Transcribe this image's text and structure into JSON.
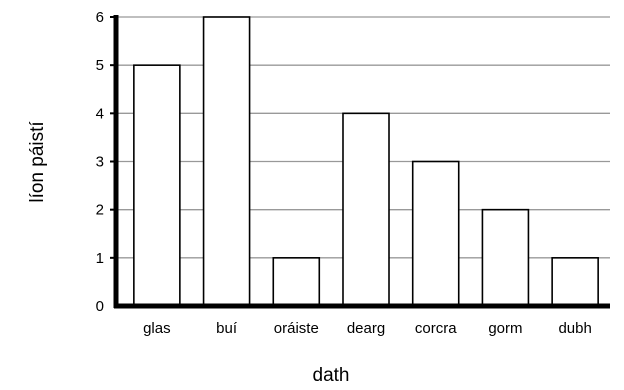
{
  "chart_data": {
    "type": "bar",
    "xlabel": "dath",
    "ylabel": "líon páistí",
    "categories": [
      "glas",
      "buí",
      "oráiste",
      "dearg",
      "corcra",
      "gorm",
      "dubh"
    ],
    "values": [
      5,
      6,
      1,
      4,
      3,
      2,
      1
    ],
    "ylim": [
      0,
      6
    ],
    "yticks": [
      0,
      1,
      2,
      3,
      4,
      5,
      6
    ],
    "grid": true,
    "legend": "none",
    "colors": {
      "bar_fill": "#ffffff",
      "bar_stroke": "#000000",
      "grid": "#999999",
      "axis": "#000000"
    }
  }
}
